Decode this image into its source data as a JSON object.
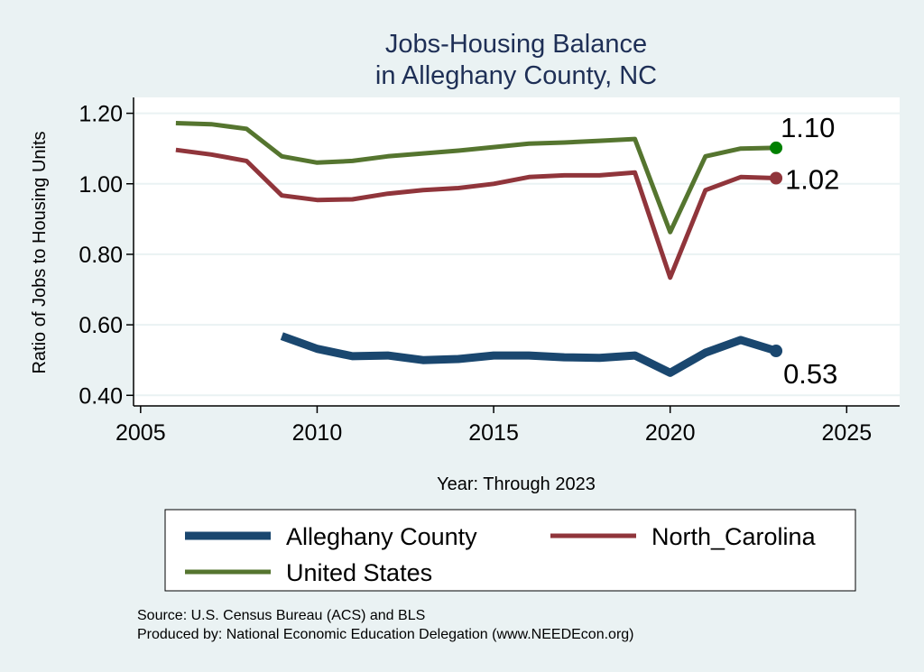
{
  "chart_data": {
    "type": "line",
    "title": [
      "Jobs-Housing Balance",
      "in Alleghany County, NC"
    ],
    "xlabel": "Year: Through 2023",
    "ylabel": "Ratio of Jobs to Housing Units",
    "xlim": [
      2004.8,
      2026.5
    ],
    "ylim": [
      0.37,
      1.245
    ],
    "xticks": [
      2005,
      2010,
      2015,
      2020,
      2025
    ],
    "yticks": [
      0.4,
      0.6,
      0.8,
      1.0,
      1.2
    ],
    "ytick_labels": [
      "0.40",
      "0.60",
      "0.80",
      "1.00",
      "1.20"
    ],
    "grid": true,
    "legend_position": "bottom",
    "series": [
      {
        "name": "Alleghany County",
        "color": "#1a476f",
        "width": 9,
        "end_label": "0.53",
        "x": [
          2009,
          2010,
          2011,
          2012,
          2013,
          2014,
          2015,
          2016,
          2017,
          2018,
          2019,
          2020,
          2021,
          2022,
          2023
        ],
        "values": [
          0.568,
          0.532,
          0.511,
          0.513,
          0.5,
          0.503,
          0.513,
          0.513,
          0.508,
          0.506,
          0.513,
          0.464,
          0.521,
          0.557,
          0.526
        ]
      },
      {
        "name": "North_Carolina",
        "color": "#90353b",
        "width": 5,
        "end_label": "1.02",
        "x": [
          2006,
          2007,
          2008,
          2009,
          2010,
          2011,
          2012,
          2013,
          2014,
          2015,
          2016,
          2017,
          2018,
          2019,
          2020,
          2021,
          2022,
          2023
        ],
        "values": [
          1.096,
          1.083,
          1.065,
          0.967,
          0.954,
          0.956,
          0.972,
          0.982,
          0.988,
          1.0,
          1.019,
          1.024,
          1.024,
          1.032,
          0.734,
          0.982,
          1.019,
          1.016
        ]
      },
      {
        "name": "United States",
        "color": "#55752f",
        "width": 5,
        "end_label": "1.10",
        "marker_color": "#008000",
        "x": [
          2006,
          2007,
          2008,
          2009,
          2010,
          2011,
          2012,
          2013,
          2014,
          2015,
          2016,
          2017,
          2018,
          2019,
          2020,
          2021,
          2022,
          2023
        ],
        "values": [
          1.172,
          1.169,
          1.156,
          1.078,
          1.06,
          1.065,
          1.078,
          1.086,
          1.094,
          1.104,
          1.114,
          1.117,
          1.122,
          1.127,
          0.863,
          1.078,
          1.1,
          1.102
        ]
      }
    ]
  },
  "source": [
    "Source: U.S. Census Bureau (ACS) and BLS",
    "Produced by: National Economic Education Delegation (www.NEEDEcon.org)"
  ]
}
